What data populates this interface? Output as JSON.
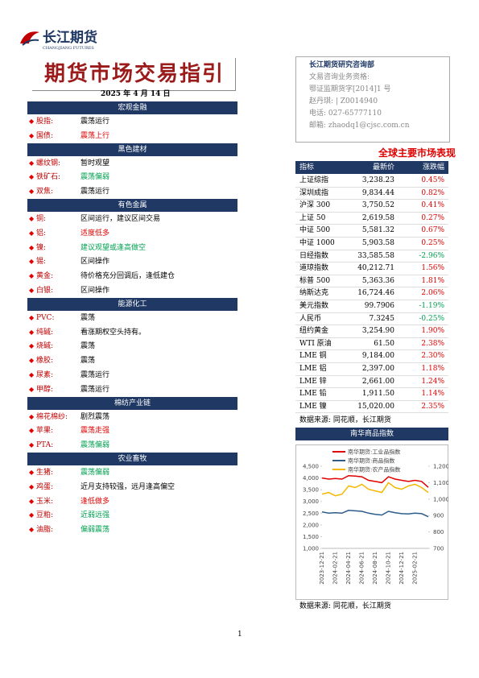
{
  "header": {
    "logo": "长江期货",
    "logo_en": "CHANGJIANG FUTURES",
    "title": "期货市场交易指引",
    "date": "2025 年 4 月 14 日"
  },
  "contact": {
    "dept": "长江期货研究咨询部",
    "lines": [
      "文易咨询业务资格:",
      "鄂证监期货字[2014]1 号",
      "赵丹琪: | Z0014940",
      "电话: 027-65777110",
      "邮箱: zhaodq1@cjsc.com.cn"
    ]
  },
  "sections": [
    {
      "heading": "宏观金融",
      "items": [
        {
          "name": "股指:",
          "view": "震荡运行",
          "color": "#000000"
        },
        {
          "name": "国债:",
          "view": "震荡上行",
          "color": "#e00000"
        }
      ]
    },
    {
      "heading": "黑色建材",
      "items": [
        {
          "name": "螺纹钢:",
          "view": "暂时观望",
          "color": "#000000"
        },
        {
          "name": "铁矿石:",
          "view": "震荡偏弱",
          "color": "#00a050"
        },
        {
          "name": "双焦:",
          "view": "震荡运行",
          "color": "#000000"
        }
      ]
    },
    {
      "heading": "有色金属",
      "items": [
        {
          "name": "铜:",
          "view": "区间运行，建议区间交易",
          "color": "#000000"
        },
        {
          "name": "铝:",
          "view": "适度低多",
          "color": "#e00000"
        },
        {
          "name": "镍:",
          "view": "建议观望或逢高做空",
          "color": "#00a050"
        },
        {
          "name": "锡:",
          "view": "区间操作",
          "color": "#000000"
        },
        {
          "name": "黄金:",
          "view": "待价格充分回调后，逢低建仓",
          "color": "#000000"
        },
        {
          "name": "白银:",
          "view": "区间操作",
          "color": "#000000"
        }
      ]
    },
    {
      "heading": "能源化工",
      "items": [
        {
          "name": "PVC:",
          "view": "震荡",
          "color": "#000000"
        },
        {
          "name": "纯碱:",
          "view": "看涨期权空头持有。",
          "color": "#000000"
        },
        {
          "name": "烧碱:",
          "view": "震荡",
          "color": "#000000"
        },
        {
          "name": "橡胶:",
          "view": "震荡",
          "color": "#000000"
        },
        {
          "name": "尿素:",
          "view": "震荡运行",
          "color": "#000000"
        },
        {
          "name": "甲醇:",
          "view": "震荡运行",
          "color": "#000000"
        }
      ]
    },
    {
      "heading": "棉纺产业链",
      "items": [
        {
          "name": "棉花棉纱:",
          "view": "剧烈震荡",
          "color": "#000000"
        },
        {
          "name": "苹果:",
          "view": "震荡走强",
          "color": "#e00000"
        },
        {
          "name": "PTA:",
          "view": "震荡偏弱",
          "color": "#00a050"
        }
      ]
    },
    {
      "heading": "农业畜牧",
      "items": [
        {
          "name": "生猪:",
          "view": "震荡偏弱",
          "color": "#00a050"
        },
        {
          "name": "鸡蛋:",
          "view": "近月支持较强，远月逢高偏空",
          "color": "#000000"
        },
        {
          "name": "玉米:",
          "view": "逢低做多",
          "color": "#e00000"
        },
        {
          "name": "豆粕:",
          "view": "近弱远强",
          "color": "#00a050"
        },
        {
          "name": "油脂:",
          "view": "偏弱震荡",
          "color": "#00a050"
        }
      ]
    }
  ],
  "market": {
    "title": "全球主要市场表现",
    "columns": [
      "指标",
      "最新价",
      "涨跌幅"
    ],
    "rows": [
      [
        "上证综指",
        "3,238.23",
        "0.45%"
      ],
      [
        "深圳成指",
        "9,834.44",
        "0.82%"
      ],
      [
        "沪深 300",
        "3,750.52",
        "0.41%"
      ],
      [
        "上证 50",
        "2,619.58",
        "0.27%"
      ],
      [
        "中证 500",
        "5,581.32",
        "0.67%"
      ],
      [
        "中证 1000",
        "5,903.58",
        "0.25%"
      ],
      [
        "日经指数",
        "33,585.58",
        "-2.96%"
      ],
      [
        "道琼指数",
        "40,212.71",
        "1.56%"
      ],
      [
        "标普 500",
        "5,363.36",
        "1.81%"
      ],
      [
        "纳斯达克",
        "16,724.46",
        "2.06%"
      ],
      [
        "美元指数",
        "99.7906",
        "-1.19%"
      ],
      [
        "人民币",
        "7.3245",
        "-0.25%"
      ],
      [
        "纽约黄金",
        "3,254.90",
        "1.90%"
      ],
      [
        "WTI 原油",
        "61.50",
        "2.38%"
      ],
      [
        "LME 铜",
        "9,184.00",
        "2.30%"
      ],
      [
        "LME 铝",
        "2,397.00",
        "1.18%"
      ],
      [
        "LME 锌",
        "2,661.00",
        "1.24%"
      ],
      [
        "LME 铅",
        "1,911.50",
        "1.14%"
      ],
      [
        "LME 镍",
        "15,020.00",
        "2.35%"
      ]
    ],
    "source": "数据来源:    同花顺，长江期货"
  },
  "chart_section": {
    "heading": "南华商品指数",
    "source": "数据来源:    同花顺，长江期货"
  },
  "chart_data": {
    "type": "line",
    "x": [
      "2023-12-21",
      null,
      "2024-02-21",
      null,
      "2024-04-21",
      null,
      "2024-06-21",
      null,
      "2024-08-21",
      null,
      "2024-10-21",
      null,
      "2024-12-21",
      null,
      "2025-02-21",
      null,
      null
    ],
    "series": [
      {
        "name": "南华期货:工业品指数",
        "color": "#e00000",
        "values": [
          4000,
          3950,
          3980,
          3950,
          4100,
          4080,
          4050,
          3900,
          3850,
          3800,
          4050,
          3950,
          3900,
          3850,
          3900,
          3850,
          3600
        ]
      },
      {
        "name": "南华期货:商品指数",
        "color": "#2e5c8a",
        "values": [
          2550,
          2500,
          2520,
          2500,
          2620,
          2600,
          2580,
          2500,
          2450,
          2420,
          2580,
          2520,
          2480,
          2470,
          2500,
          2480,
          2350
        ]
      },
      {
        "name": "南华期货:农产品指数",
        "color": "#f5b800",
        "axis": "y2",
        "values": [
          1030,
          1040,
          1020,
          1030,
          1080,
          1070,
          1090,
          1060,
          1050,
          1040,
          1100,
          1070,
          1060,
          1080,
          1090,
          1070,
          1040
        ]
      }
    ],
    "ylim": [
      1000,
      4500
    ],
    "yticks": [
      {
        "value": 1000,
        "label": "1,000"
      },
      {
        "value": 1500,
        "label": "1,500"
      },
      {
        "value": 2000,
        "label": "2,000"
      },
      {
        "value": 2500,
        "label": "2,500"
      },
      {
        "value": 3000,
        "label": "3,000"
      },
      {
        "value": 3500,
        "label": "3,500"
      },
      {
        "value": 4000,
        "label": "4,000"
      },
      {
        "value": 4500,
        "label": "4,500"
      }
    ],
    "y2lim": [
      700,
      1200
    ],
    "y2ticks": [
      700,
      800,
      900,
      {
        "value": 1000,
        "label": "1,000"
      },
      {
        "value": 1100,
        "label": "1,100"
      },
      {
        "value": 1200,
        "label": "1,200"
      }
    ]
  },
  "page_number": "1"
}
